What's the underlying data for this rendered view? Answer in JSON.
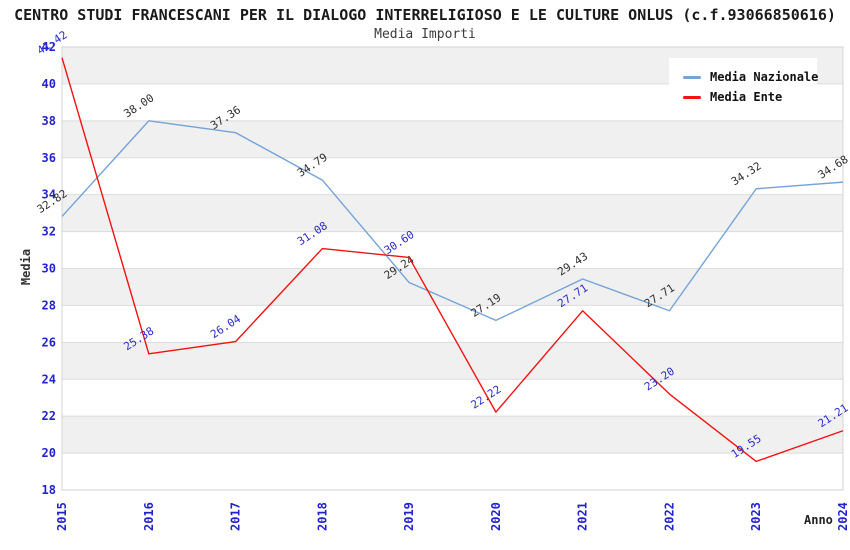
{
  "header": {
    "title": "CENTRO STUDI FRANCESCANI PER IL DIALOGO INTERRELIGIOSO E LE CULTURE ONLUS (c.f.93066850616)",
    "subtitle": "Media Importi"
  },
  "chart_data": {
    "type": "line",
    "title": "Media Importi",
    "xlabel": "Anno",
    "ylabel": "Media",
    "categories": [
      "2015",
      "2016",
      "2017",
      "2018",
      "2019",
      "2020",
      "2021",
      "2022",
      "2023",
      "2024"
    ],
    "ylim": [
      18,
      42
    ],
    "ytick_step": 2,
    "grid": true,
    "legend_position": "top-right",
    "series": [
      {
        "name": "Media Nazionale",
        "color": "#74a3d8",
        "label_color": "#2e2e2e",
        "values": [
          32.82,
          38.0,
          37.36,
          34.79,
          29.24,
          27.19,
          29.43,
          27.71,
          34.32,
          34.68
        ],
        "labels": [
          "32.82",
          "38.00",
          "37.36",
          "34.79",
          "29.24",
          "27.19",
          "29.43",
          "27.71",
          "34.32",
          "34.68"
        ]
      },
      {
        "name": "Media Ente",
        "color": "#f31212",
        "label_color": "#2a2ac8",
        "values": [
          41.42,
          25.38,
          26.04,
          31.08,
          30.6,
          22.22,
          27.71,
          23.2,
          19.55,
          21.21
        ],
        "labels": [
          "41.42",
          "25.38",
          "26.04",
          "31.08",
          "30.60",
          "22.22",
          "27.71",
          "23.20",
          "19.55",
          "21.21"
        ]
      }
    ],
    "style": {
      "band_fill": "#f0f0f0",
      "grid_color": "#dcdcdc",
      "border_color": "#d3d3d3",
      "tick_color": "#2323cd"
    }
  }
}
